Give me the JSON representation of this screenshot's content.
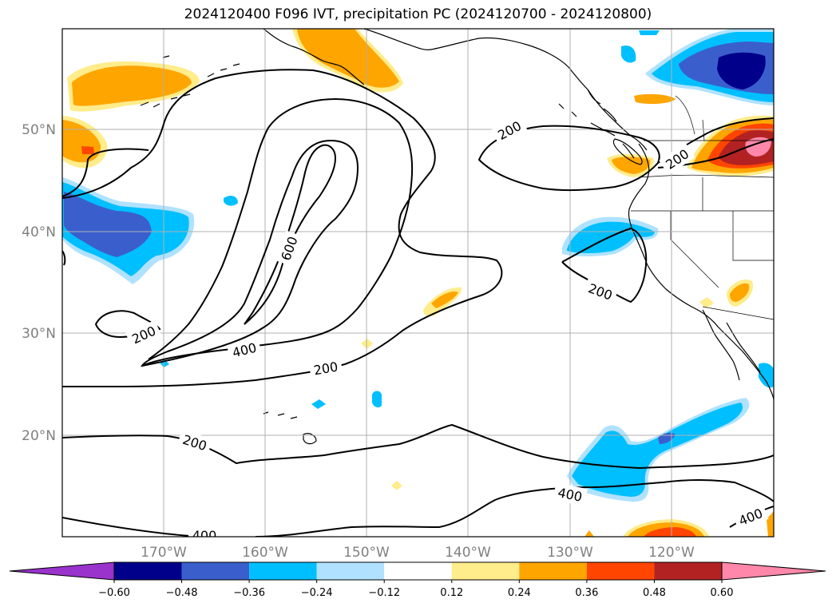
{
  "title": "2024120400 F096 IVT, precipitation PC (2024120700 - 2024120800)",
  "lat_labels": [
    "50°N",
    "40°N",
    "30°N",
    "20°N"
  ],
  "lon_labels": [
    "170°W",
    "160°W",
    "150°W",
    "140°W",
    "130°W",
    "120°W"
  ],
  "contour_labels": {
    "a": "200",
    "b": "200",
    "c": "600",
    "d": "200",
    "e": "400",
    "f": "200",
    "g": "200",
    "h": "400",
    "i": "400",
    "j": "400",
    "k": "200"
  },
  "colorbar": {
    "ticks": [
      "−0.60",
      "−0.48",
      "−0.36",
      "−0.24",
      "−0.12",
      "0.12",
      "0.24",
      "0.36",
      "0.48",
      "0.60"
    ],
    "colors": [
      "#9933cc",
      "#00008b",
      "#3a5fcd",
      "#00bfff",
      "#b0e2ff",
      "#ffffff",
      "#ffec8b",
      "#ffa500",
      "#ff4500",
      "#b22222",
      "#ff88aa"
    ]
  },
  "colors": {
    "land_outline": "#000000",
    "grid": "#b0b0b0",
    "contour": "#000000"
  }
}
